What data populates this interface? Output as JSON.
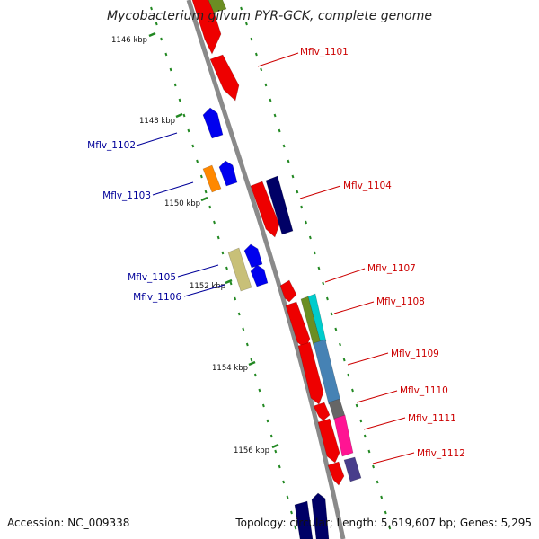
{
  "title": "Mycobacterium gilvum PYR-GCK, complete genome",
  "footer": {
    "accession": "Accession: NC_009338",
    "summary": "Topology: circular; Length: 5,619,607 bp; Genes: 5,295"
  },
  "scale_labels": [
    "1146 kbp",
    "1148 kbp",
    "1150 kbp",
    "1152 kbp",
    "1154 kbp",
    "1156 kbp"
  ],
  "gene_labels": {
    "forward": [
      "Mflv_1102",
      "Mflv_1103",
      "Mflv_1105",
      "Mflv_1106"
    ],
    "reverse": [
      "Mflv_1101",
      "Mflv_1104",
      "Mflv_1107",
      "Mflv_1108",
      "Mflv_1109",
      "Mflv_1110",
      "Mflv_1111",
      "Mflv_1112"
    ]
  },
  "colors": {
    "reverse_label": "#cc0000",
    "forward_label": "#000099",
    "backbone": "#8a8a8a",
    "ticks": "#228822",
    "red_gene": "#ee0000",
    "blue_gene": "#0000ee",
    "navy_gene": "#000066",
    "orange_gene": "#ff8800",
    "khaki_gene": "#c8c078",
    "olive_gene": "#6b8e23",
    "cyan_gene": "#00cccc",
    "steel_gene": "#4682b4",
    "gray_gene": "#666666",
    "pink_gene": "#ff1493",
    "purple_gene": "#483d8b"
  }
}
